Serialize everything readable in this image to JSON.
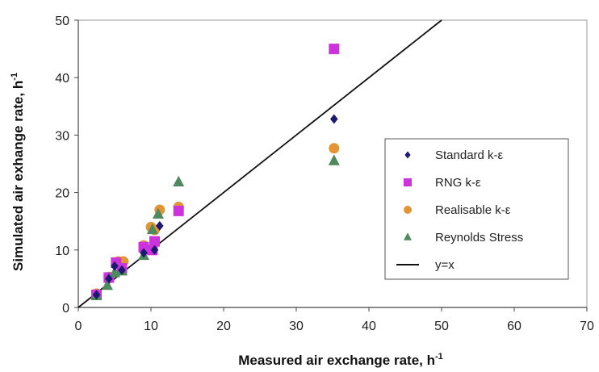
{
  "chart_data": {
    "type": "scatter",
    "title": "",
    "xlabel": "Measured air exchange rate, h",
    "xlabel_sup": "-1",
    "ylabel": "Simulated air exhange rate, h",
    "ylabel_sup": "-1",
    "xlim": [
      0,
      70
    ],
    "ylim": [
      0,
      50
    ],
    "xticks": [
      0,
      10,
      20,
      30,
      40,
      50,
      60,
      70
    ],
    "yticks": [
      0,
      10,
      20,
      30,
      40,
      50
    ],
    "grid": false,
    "legend_position": "right",
    "series": [
      {
        "name": "Standard k-ε",
        "marker": "diamond",
        "color": "#1a1a6e",
        "points": [
          [
            2.5,
            2.2
          ],
          [
            4.2,
            5.0
          ],
          [
            5.0,
            7.2
          ],
          [
            6.0,
            6.5
          ],
          [
            9.0,
            9.5
          ],
          [
            10.5,
            10.0
          ],
          [
            11.2,
            14.2
          ],
          [
            35.2,
            32.8
          ]
        ]
      },
      {
        "name": "RNG k-ε",
        "marker": "square",
        "color": "#cc33dd",
        "points": [
          [
            2.5,
            2.2
          ],
          [
            4.2,
            5.2
          ],
          [
            5.2,
            7.8
          ],
          [
            6.0,
            6.8
          ],
          [
            9.0,
            10.5
          ],
          [
            10.2,
            10.0
          ],
          [
            10.5,
            11.5
          ],
          [
            13.8,
            16.8
          ],
          [
            35.2,
            45.0
          ]
        ]
      },
      {
        "name": "Realisable k-ε",
        "marker": "circle",
        "color": "#e39433",
        "points": [
          [
            2.5,
            2.4
          ],
          [
            4.2,
            5.3
          ],
          [
            5.5,
            8.0
          ],
          [
            6.2,
            8.0
          ],
          [
            9.0,
            10.8
          ],
          [
            10.0,
            14.0
          ],
          [
            10.5,
            13.5
          ],
          [
            11.2,
            17.0
          ],
          [
            13.8,
            17.5
          ],
          [
            35.2,
            27.7
          ]
        ]
      },
      {
        "name": "Reynolds Stress",
        "marker": "triangle",
        "color": "#4e8a5e",
        "points": [
          [
            2.5,
            2.0
          ],
          [
            4.0,
            3.8
          ],
          [
            5.0,
            6.0
          ],
          [
            6.0,
            6.3
          ],
          [
            9.0,
            9.0
          ],
          [
            10.2,
            13.5
          ],
          [
            11.0,
            16.2
          ],
          [
            13.8,
            21.8
          ],
          [
            35.2,
            25.5
          ]
        ]
      },
      {
        "name": "y=x",
        "marker": "line",
        "color": "#111111",
        "points": [
          [
            0,
            0
          ],
          [
            50,
            50
          ]
        ]
      }
    ]
  }
}
